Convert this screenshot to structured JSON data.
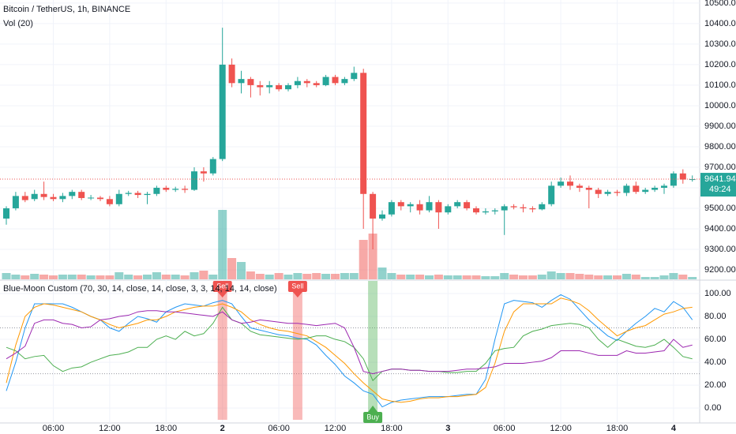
{
  "chart_data": [
    {
      "type": "candlestick",
      "title": "Bitcoin / TetherUS, 1h, BINANCE",
      "categories": [
        null,
        null,
        null,
        null,
        null,
        "06:00",
        null,
        null,
        null,
        null,
        null,
        "12:00",
        null,
        null,
        null,
        null,
        null,
        "18:00",
        null,
        null,
        null,
        null,
        null,
        "2",
        null,
        null,
        null,
        null,
        null,
        "06:00",
        null,
        null,
        null,
        null,
        null,
        "12:00",
        null,
        null,
        null,
        null,
        null,
        "18:00",
        null,
        null,
        null,
        null,
        null,
        "3",
        null,
        null,
        null,
        null,
        null,
        "06:00",
        null,
        null,
        null,
        null,
        null,
        "12:00",
        null,
        null,
        null,
        null,
        null,
        "18:00",
        null,
        null,
        null,
        null,
        null,
        "4",
        null,
        null
      ],
      "open": [
        9450,
        9500,
        9560,
        9545,
        9570,
        9555,
        9545,
        9560,
        9580,
        9550,
        9552,
        9545,
        9520,
        9570,
        9575,
        9565,
        9570,
        9600,
        9590,
        9595,
        9590,
        9680,
        9670,
        9740,
        10200,
        10110,
        10130,
        10100,
        10090,
        10100,
        10080,
        10100,
        10120,
        10110,
        10100,
        10140,
        10110,
        10130,
        10160,
        9570,
        9450,
        9470,
        9530,
        9510,
        9520,
        9490,
        9530,
        9480,
        9510,
        9530,
        9500,
        9480,
        9485,
        9490,
        9510,
        9505,
        9500,
        9495,
        9520,
        9610,
        9630,
        9610,
        9600,
        9590,
        9570,
        9580,
        9575,
        9610,
        9580,
        9590,
        9600,
        9610,
        9670,
        9640
      ],
      "high": [
        9510,
        9580,
        9580,
        9590,
        9630,
        9570,
        9575,
        9590,
        9590,
        9565,
        9560,
        9560,
        9590,
        9585,
        9585,
        9580,
        9610,
        9610,
        9605,
        9610,
        9700,
        9700,
        9750,
        10380,
        10230,
        10170,
        10140,
        10120,
        10120,
        10110,
        10110,
        10140,
        10130,
        10120,
        10150,
        10150,
        10140,
        10190,
        10180,
        9580,
        9490,
        9540,
        9540,
        9530,
        9540,
        9560,
        9540,
        9520,
        9540,
        9540,
        9510,
        9500,
        9500,
        9520,
        9520,
        9520,
        9510,
        9530,
        9630,
        9650,
        9660,
        9620,
        9610,
        9600,
        9590,
        9590,
        9620,
        9630,
        9600,
        9610,
        9620,
        9680,
        9690,
        9660
      ],
      "low": [
        9420,
        9490,
        9530,
        9535,
        9540,
        9535,
        9530,
        9545,
        9540,
        9540,
        9535,
        9510,
        9510,
        9560,
        9550,
        9520,
        9560,
        9580,
        9580,
        9575,
        9585,
        9630,
        9660,
        9730,
        10090,
        10060,
        10040,
        10050,
        10060,
        10070,
        10070,
        10085,
        10090,
        10090,
        10095,
        10100,
        10100,
        10120,
        9400,
        9300,
        9440,
        9460,
        9490,
        9480,
        9470,
        9480,
        9400,
        9470,
        9500,
        9490,
        9470,
        9470,
        9470,
        9370,
        9495,
        9480,
        9480,
        9490,
        9510,
        9600,
        9590,
        9580,
        9500,
        9550,
        9560,
        9560,
        9560,
        9570,
        9570,
        9580,
        9570,
        9600,
        9620,
        9630
      ],
      "close": [
        9500,
        9560,
        9540,
        9570,
        9555,
        9545,
        9560,
        9580,
        9550,
        9552,
        9545,
        9520,
        9570,
        9575,
        9565,
        9570,
        9600,
        9590,
        9595,
        9590,
        9680,
        9670,
        9740,
        10200,
        10110,
        10130,
        10100,
        10090,
        10100,
        10080,
        10100,
        10120,
        10110,
        10100,
        10140,
        10110,
        10130,
        10160,
        9570,
        9450,
        9470,
        9530,
        9510,
        9520,
        9490,
        9530,
        9480,
        9510,
        9530,
        9500,
        9480,
        9485,
        9490,
        9510,
        9505,
        9500,
        9495,
        9520,
        9610,
        9630,
        9610,
        9600,
        9590,
        9570,
        9580,
        9575,
        9610,
        9580,
        9590,
        9600,
        9610,
        9670,
        9640,
        9641.94
      ],
      "up_color": "#26a69a",
      "down_color": "#ef5350",
      "ylim": [
        9150,
        10515
      ],
      "yticks": [
        {
          "value": 9200,
          "label": "9200.00"
        },
        {
          "value": 9300,
          "label": "9300.00"
        },
        {
          "value": 9400,
          "label": "9400.00"
        },
        {
          "value": 9500,
          "label": "9500.00"
        },
        {
          "value": 9600,
          "label": "9600.00"
        },
        {
          "value": 9700,
          "label": "9700.00"
        },
        {
          "value": 9800,
          "label": "9800.00"
        },
        {
          "value": 9900,
          "label": "9900.00"
        },
        {
          "value": 10000,
          "label": "10000.00"
        },
        {
          "value": 10100,
          "label": "10100.00"
        },
        {
          "value": 10200,
          "label": "10200.00"
        },
        {
          "value": 10300,
          "label": "10300.00"
        },
        {
          "value": 10400,
          "label": "10400.00"
        },
        {
          "value": 10500,
          "label": "10500.00"
        }
      ],
      "grid": true,
      "volume": {
        "label": "Vol (20)",
        "values": [
          8,
          6,
          5,
          7,
          6,
          5,
          6,
          6,
          6,
          5,
          5,
          5,
          9,
          6,
          5,
          6,
          9,
          6,
          6,
          5,
          9,
          11,
          6,
          88,
          27,
          22,
          10,
          7,
          6,
          8,
          6,
          8,
          7,
          8,
          7,
          7,
          8,
          8,
          50,
          58,
          15,
          8,
          6,
          6,
          6,
          5,
          6,
          5,
          5,
          5,
          5,
          4,
          4,
          8,
          6,
          5,
          5,
          6,
          10,
          8,
          8,
          7,
          6,
          5,
          5,
          5,
          7,
          6,
          3,
          3,
          5,
          8,
          6,
          3
        ]
      },
      "countdown": "49:24"
    },
    {
      "type": "line",
      "title": "Blue-Moon Custom (70, 30, 14, close, 14, close, 3, 3, 14, 14, 14, close)",
      "series": [
        {
          "color": "#2196f3",
          "values": [
            15,
            40,
            70,
            91,
            91,
            91,
            91,
            88,
            84,
            80,
            77,
            70,
            67,
            74,
            80,
            78,
            75,
            84,
            88,
            91,
            90,
            89,
            92,
            94,
            91,
            80,
            70,
            68,
            66,
            64,
            63,
            61,
            60,
            55,
            46,
            38,
            28,
            22,
            15,
            12,
            1,
            5,
            7,
            8,
            9,
            10,
            10,
            10,
            11,
            12,
            12,
            25,
            60,
            91,
            94,
            93,
            92,
            88,
            94,
            99,
            95,
            86,
            77,
            70,
            63,
            59,
            67,
            74,
            80,
            87,
            84,
            93,
            88,
            77
          ]
        },
        {
          "color": "#ff9800",
          "values": [
            22,
            55,
            80,
            88,
            91,
            90,
            88,
            86,
            84,
            80,
            77,
            73,
            70,
            72,
            74,
            77,
            77,
            80,
            84,
            86,
            88,
            89,
            89,
            91,
            88,
            84,
            77,
            73,
            70,
            68,
            67,
            65,
            63,
            58,
            53,
            46,
            39,
            30,
            22,
            15,
            8,
            6,
            5,
            6,
            8,
            9,
            9,
            10,
            10,
            11,
            12,
            18,
            39,
            67,
            84,
            91,
            91,
            91,
            91,
            96,
            94,
            91,
            85,
            77,
            70,
            63,
            67,
            70,
            72,
            77,
            82,
            84,
            87,
            88
          ]
        },
        {
          "color": "#4caf50",
          "values": [
            53,
            50,
            43,
            45,
            46,
            37,
            32,
            35,
            36,
            40,
            43,
            46,
            47,
            49,
            53,
            53,
            60,
            63,
            60,
            67,
            63,
            65,
            74,
            88,
            77,
            74,
            67,
            64,
            63,
            62,
            61,
            60,
            61,
            63,
            63,
            60,
            58,
            53,
            43,
            24,
            32,
            34,
            34,
            33,
            33,
            32,
            32,
            31,
            31,
            32,
            32,
            39,
            50,
            52,
            53,
            63,
            67,
            69,
            72,
            73,
            74,
            73,
            70,
            60,
            53,
            60,
            57,
            54,
            53,
            55,
            60,
            53,
            45,
            43
          ]
        },
        {
          "color": "#9c27b0",
          "values": [
            43,
            48,
            54,
            74,
            77,
            77,
            74,
            73,
            70,
            71,
            77,
            78,
            80,
            81,
            84,
            85,
            85,
            84,
            84,
            83,
            82,
            81,
            80,
            84,
            77,
            74,
            75,
            77,
            76,
            75,
            74,
            74,
            73,
            72,
            73,
            74,
            70,
            53,
            32,
            30,
            32,
            34,
            34,
            33,
            33,
            32,
            32,
            32,
            33,
            34,
            34,
            35,
            36,
            39,
            39,
            39,
            40,
            41,
            44,
            50,
            50,
            50,
            48,
            46,
            46,
            46,
            50,
            48,
            48,
            49,
            50,
            60,
            53,
            55
          ]
        }
      ],
      "ylim": [
        -13,
        111
      ],
      "yticks": [
        {
          "value": 0,
          "label": "0.00"
        },
        {
          "value": 20,
          "label": "20.00"
        },
        {
          "value": 40,
          "label": "40.00"
        },
        {
          "value": 60,
          "label": "60.00"
        },
        {
          "value": 80,
          "label": "80.00"
        },
        {
          "value": 100,
          "label": "100.00"
        }
      ],
      "levels": [
        70,
        30
      ],
      "signals": [
        {
          "label": "Sell",
          "at": 23,
          "color": "#ef5350"
        },
        {
          "label": "Sell",
          "at": 31,
          "color": "#ef5350"
        },
        {
          "label": "Buy",
          "at": 39,
          "color": "#4caf50"
        }
      ]
    }
  ]
}
